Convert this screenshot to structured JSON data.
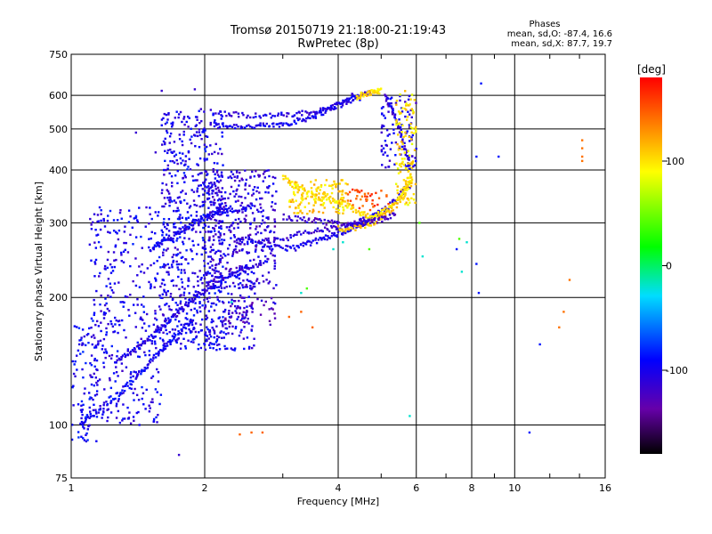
{
  "header": {
    "title_line1": "Tromsø 20150719 21:18:00-21:19:43",
    "title_line2": "RwPretec (8p)"
  },
  "stats": {
    "heading": "Phases",
    "o_mode": "mean, sd,O: -87.4, 16.6",
    "x_mode": "mean, sd,X: 87.7, 19.7"
  },
  "chart_data": {
    "type": "scatter",
    "xlabel": "Frequency [MHz]",
    "ylabel": "Stationary phase Virtual Height [km]",
    "x_scale": "log",
    "y_scale": "log",
    "xlim": [
      1,
      16
    ],
    "ylim": [
      75,
      750
    ],
    "x_ticks": [
      1,
      2,
      4,
      6,
      8,
      10,
      16
    ],
    "x_tick_labels": [
      "1",
      "2",
      "4",
      "6",
      "8",
      "10",
      "16"
    ],
    "y_ticks": [
      75,
      100,
      200,
      300,
      400,
      500,
      600,
      750
    ],
    "y_tick_labels": [
      "75",
      "100",
      "200",
      "300",
      "400",
      "500",
      "600",
      "750"
    ],
    "x_gridlines": [
      2,
      4,
      6,
      8,
      10
    ],
    "y_gridlines": [
      100,
      200,
      300,
      400,
      500,
      600
    ],
    "grid": true,
    "colorbar": {
      "label": "[deg]",
      "range": [
        -180,
        180
      ],
      "ticks": [
        100,
        0,
        -100
      ],
      "tick_labels": [
        "100",
        "0",
        "-100"
      ],
      "colors": [
        "#000000",
        "#6600aa",
        "#0000ff",
        "#00ddff",
        "#00ff00",
        "#ffff00",
        "#ff0000"
      ]
    },
    "series": [
      {
        "kind": "curve",
        "phase": -100,
        "x": [
          2.1,
          2.3,
          2.6,
          2.9,
          3.2,
          3.5,
          3.8,
          4.1,
          4.4
        ],
        "y": [
          510,
          508,
          507,
          510,
          520,
          535,
          555,
          580,
          600
        ]
      },
      {
        "kind": "curve",
        "phase": -105,
        "x": [
          2.1,
          2.4,
          2.8,
          3.2,
          3.6,
          4.0,
          4.4,
          4.8
        ],
        "y": [
          545,
          540,
          537,
          540,
          550,
          568,
          590,
          615
        ]
      },
      {
        "kind": "curve",
        "phase": 105,
        "x": [
          4.4,
          4.6,
          4.8,
          5.0
        ],
        "y": [
          595,
          605,
          612,
          615
        ]
      },
      {
        "kind": "curve",
        "phase": -110,
        "x": [
          5.1,
          5.3,
          5.5,
          5.7,
          5.8
        ],
        "y": [
          600,
          560,
          500,
          440,
          400
        ]
      },
      {
        "kind": "curve",
        "phase": -110,
        "x": [
          2.6,
          3.0,
          3.4,
          3.8,
          4.2,
          4.6,
          5.0,
          5.4,
          5.8
        ],
        "y": [
          270,
          275,
          285,
          290,
          295,
          305,
          320,
          340,
          370
        ]
      },
      {
        "kind": "curve",
        "phase": -100,
        "x": [
          2.3,
          2.6,
          2.9,
          3.2,
          3.5,
          3.8,
          4.1,
          4.4,
          4.7,
          5.0
        ],
        "y": [
          280,
          268,
          262,
          262,
          270,
          278,
          285,
          295,
          305,
          320
        ]
      },
      {
        "kind": "curve",
        "phase": 100,
        "x": [
          3.0,
          3.3,
          3.6,
          3.9,
          4.2,
          4.5,
          4.8,
          5.1,
          5.4,
          5.7,
          5.9
        ],
        "y": [
          385,
          360,
          345,
          340,
          330,
          315,
          310,
          320,
          335,
          365,
          420
        ]
      },
      {
        "kind": "curve",
        "phase": 110,
        "x": [
          4.0,
          4.4,
          4.8,
          5.2,
          5.6,
          5.9
        ],
        "y": [
          290,
          292,
          300,
          318,
          345,
          390
        ]
      },
      {
        "kind": "curve",
        "phase": -120,
        "x": [
          3.0,
          3.4,
          3.8,
          4.2,
          4.6,
          5.0,
          5.4
        ],
        "y": [
          310,
          305,
          300,
          298,
          300,
          305,
          315
        ]
      },
      {
        "kind": "curve",
        "phase": -105,
        "x": [
          1.25,
          1.35,
          1.45,
          1.55,
          1.65,
          1.75,
          1.85,
          1.95,
          2.1,
          2.3,
          2.5,
          2.8
        ],
        "y": [
          140,
          147,
          155,
          165,
          175,
          185,
          195,
          205,
          215,
          225,
          235,
          245
        ]
      },
      {
        "kind": "curve",
        "phase": -95,
        "x": [
          1.05,
          1.1,
          1.2,
          1.3,
          1.4,
          1.5,
          1.6,
          1.7,
          1.8,
          1.9
        ],
        "y": [
          100,
          105,
          112,
          120,
          130,
          140,
          150,
          160,
          170,
          180
        ]
      },
      {
        "kind": "curve",
        "phase": -100,
        "x": [
          1.5,
          1.6,
          1.7,
          1.8,
          1.9,
          2.0,
          2.1,
          2.2,
          2.4,
          2.6
        ],
        "y": [
          260,
          270,
          280,
          290,
          300,
          310,
          315,
          320,
          325,
          330
        ]
      },
      {
        "kind": "cloud",
        "phase": -100,
        "xr": [
          1.6,
          2.2
        ],
        "yr": [
          150,
          560
        ],
        "n": 650
      },
      {
        "kind": "cloud",
        "phase": -100,
        "xr": [
          1.1,
          1.6
        ],
        "yr": [
          100,
          330
        ],
        "n": 380
      },
      {
        "kind": "cloud",
        "phase": -95,
        "xr": [
          1.0,
          1.15
        ],
        "yr": [
          90,
          180
        ],
        "n": 90
      },
      {
        "kind": "cloud",
        "phase": -110,
        "xr": [
          2.0,
          2.9
        ],
        "yr": [
          210,
          400
        ],
        "n": 360
      },
      {
        "kind": "cloud",
        "phase": -100,
        "xr": [
          2.0,
          2.6
        ],
        "yr": [
          150,
          230
        ],
        "n": 120
      },
      {
        "kind": "cloud",
        "phase": -120,
        "xr": [
          2.2,
          2.9
        ],
        "yr": [
          170,
          200
        ],
        "n": 60
      },
      {
        "kind": "cloud",
        "phase": -105,
        "xr": [
          5.0,
          6.0
        ],
        "yr": [
          400,
          600
        ],
        "n": 90
      },
      {
        "kind": "cloud",
        "phase": 100,
        "xr": [
          5.4,
          6.0
        ],
        "yr": [
          330,
          620
        ],
        "n": 110
      },
      {
        "kind": "cloud",
        "phase": 105,
        "xr": [
          3.1,
          4.2
        ],
        "yr": [
          315,
          380
        ],
        "n": 140
      },
      {
        "kind": "cloud",
        "phase": 150,
        "xr": [
          4.2,
          5.2
        ],
        "yr": [
          320,
          360
        ],
        "n": 40
      },
      {
        "kind": "points",
        "phase": 140,
        "x": [
          14.2,
          14.2,
          14.2,
          14.2,
          13.3,
          12.9,
          12.6
        ],
        "y": [
          470,
          450,
          430,
          420,
          220,
          185,
          170
        ]
      },
      {
        "kind": "points",
        "phase": 145,
        "x": [
          2.4,
          2.55,
          2.7,
          3.1,
          3.3,
          3.5
        ],
        "y": [
          95,
          96,
          96,
          180,
          185,
          170
        ]
      },
      {
        "kind": "points",
        "phase": -85,
        "x": [
          8.4,
          8.2,
          8.3,
          11.4,
          10.8,
          7.4,
          8.2,
          9.2
        ],
        "y": [
          640,
          430,
          205,
          155,
          96,
          260,
          240,
          430
        ]
      },
      {
        "kind": "points",
        "phase": -20,
        "x": [
          7.8,
          7.6,
          5.8,
          6.2,
          3.9,
          4.1,
          2.3,
          3.3
        ],
        "y": [
          270,
          230,
          105,
          250,
          260,
          270,
          195,
          205
        ]
      },
      {
        "kind": "points",
        "phase": 40,
        "x": [
          4.7,
          6.1,
          7.5,
          3.4
        ],
        "y": [
          260,
          300,
          275,
          210
        ]
      },
      {
        "kind": "points",
        "phase": -115,
        "x": [
          1.6,
          1.75,
          1.4,
          1.55,
          1.9,
          4.3,
          4.6
        ],
        "y": [
          615,
          85,
          490,
          440,
          620,
          605,
          610
        ]
      }
    ]
  }
}
